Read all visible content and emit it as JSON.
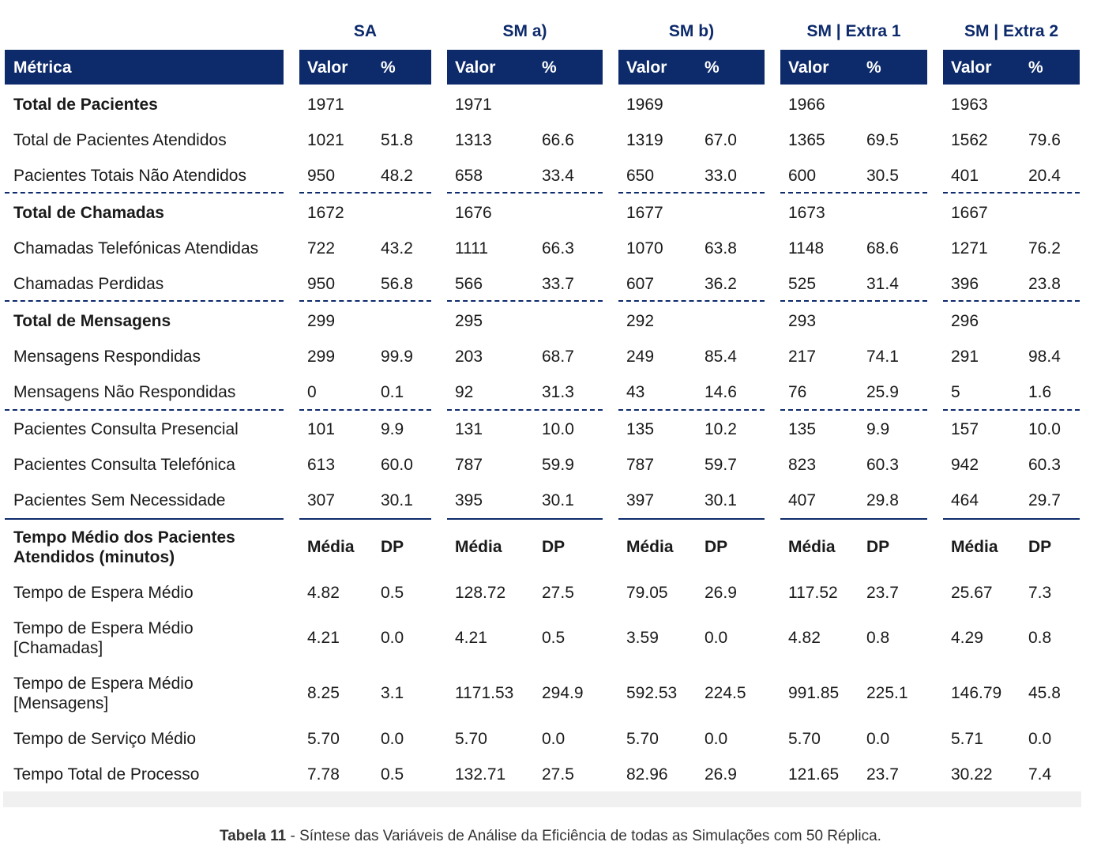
{
  "groups": [
    "SA",
    "SM a)",
    "SM b)",
    "SM | Extra 1",
    "SM | Extra 2"
  ],
  "header": {
    "metric": "Métrica",
    "valor": "Valor",
    "pct": "%"
  },
  "rows": [
    {
      "label": "Total de Pacientes",
      "bold": true,
      "cells": [
        "1971",
        "",
        "1971",
        "",
        "1969",
        "",
        "1966",
        "",
        "1963",
        ""
      ]
    },
    {
      "label": "Total de Pacientes Atendidos",
      "cells": [
        "1021",
        "51.8",
        "1313",
        "66.6",
        "1319",
        "67.0",
        "1365",
        "69.5",
        "1562",
        "79.6"
      ]
    },
    {
      "label": "Pacientes Totais Não Atendidos",
      "cells": [
        "950",
        "48.2",
        "658",
        "33.4",
        "650",
        "33.0",
        "600",
        "30.5",
        "401",
        "20.4"
      ]
    },
    {
      "label": "Total de Chamadas",
      "bold": true,
      "cells": [
        "1672",
        "",
        "1676",
        "",
        "1677",
        "",
        "1673",
        "",
        "1667",
        ""
      ]
    },
    {
      "label": "Chamadas Telefónicas Atendidas",
      "cells": [
        "722",
        "43.2",
        "1111",
        "66.3",
        "1070",
        "63.8",
        "1148",
        "68.6",
        "1271",
        "76.2"
      ]
    },
    {
      "label": "Chamadas Perdidas",
      "cells": [
        "950",
        "56.8",
        "566",
        "33.7",
        "607",
        "36.2",
        "525",
        "31.4",
        "396",
        "23.8"
      ]
    },
    {
      "label": "Total de Mensagens",
      "bold": true,
      "cells": [
        "299",
        "",
        "295",
        "",
        "292",
        "",
        "293",
        "",
        "296",
        ""
      ]
    },
    {
      "label": "Mensagens Respondidas",
      "cells": [
        "299",
        "99.9",
        "203",
        "68.7",
        "249",
        "85.4",
        "217",
        "74.1",
        "291",
        "98.4"
      ]
    },
    {
      "label": "Mensagens Não Respondidas",
      "cells": [
        "0",
        "0.1",
        "92",
        "31.3",
        "43",
        "14.6",
        "76",
        "25.9",
        "5",
        "1.6"
      ]
    },
    {
      "label": "Pacientes Consulta Presencial",
      "cells": [
        "101",
        "9.9",
        "131",
        "10.0",
        "135",
        "10.2",
        "135",
        "9.9",
        "157",
        "10.0"
      ]
    },
    {
      "label": "Pacientes Consulta Telefónica",
      "cells": [
        "613",
        "60.0",
        "787",
        "59.9",
        "787",
        "59.7",
        "823",
        "60.3",
        "942",
        "60.3"
      ]
    },
    {
      "label": "Pacientes Sem Necessidade",
      "cells": [
        "307",
        "30.1",
        "395",
        "30.1",
        "397",
        "30.1",
        "407",
        "29.8",
        "464",
        "29.7"
      ]
    }
  ],
  "section2": {
    "title": [
      "Tempo Médio dos Pacientes",
      "Atendidos (minutos)"
    ],
    "media": "Média",
    "dp": "DP",
    "rows": [
      {
        "label": [
          "Tempo de Espera Médio"
        ],
        "cells": [
          "4.82",
          "0.5",
          "128.72",
          "27.5",
          "79.05",
          "26.9",
          "117.52",
          "23.7",
          "25.67",
          "7.3"
        ]
      },
      {
        "label": [
          "Tempo de Espera Médio",
          "[Chamadas]"
        ],
        "cells": [
          "4.21",
          "0.0",
          "4.21",
          "0.5",
          "3.59",
          "0.0",
          "4.82",
          "0.8",
          "4.29",
          "0.8"
        ]
      },
      {
        "label": [
          "Tempo de Espera Médio",
          "[Mensagens]"
        ],
        "cells": [
          "8.25",
          "3.1",
          "1171.53",
          "294.9",
          "592.53",
          "224.5",
          "991.85",
          "225.1",
          "146.79",
          "45.8"
        ]
      },
      {
        "label": [
          "Tempo de Serviço Médio"
        ],
        "cells": [
          "5.70",
          "0.0",
          "5.70",
          "0.0",
          "5.70",
          "0.0",
          "5.70",
          "0.0",
          "5.71",
          "0.0"
        ]
      },
      {
        "label": [
          "Tempo Total de Processo"
        ],
        "cells": [
          "7.78",
          "0.5",
          "132.71",
          "27.5",
          "82.96",
          "26.9",
          "121.65",
          "23.7",
          "30.22",
          "7.4"
        ]
      }
    ]
  },
  "caption": {
    "label": "Tabela 11",
    "sep": " - ",
    "text": "Síntese das Variáveis de Análise da Eficiência de todas as Simulações com 50 Réplica."
  }
}
